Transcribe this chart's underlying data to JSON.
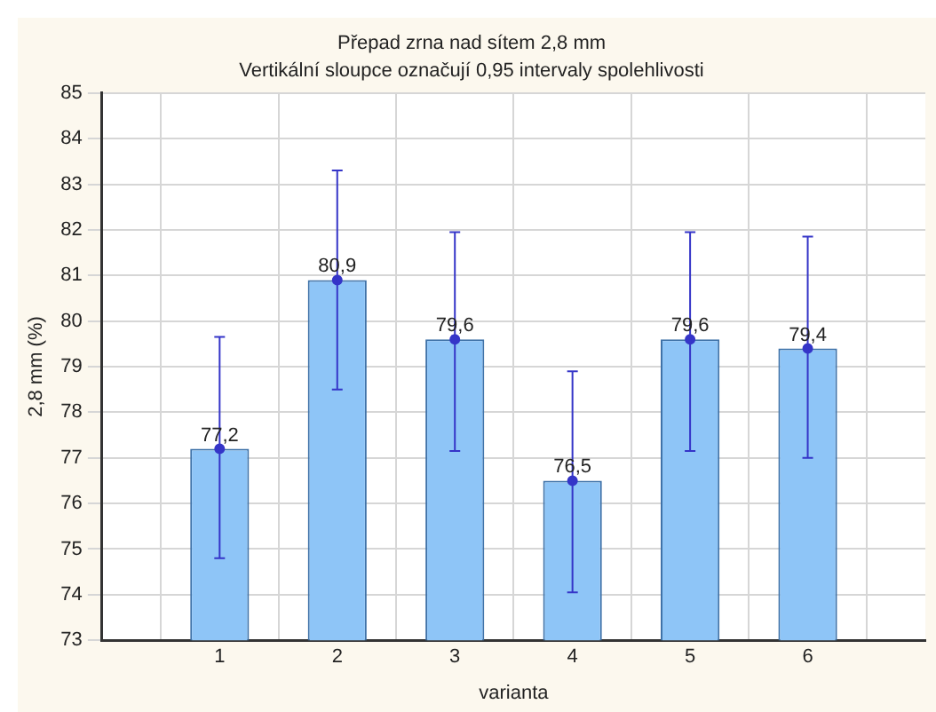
{
  "chart_data": {
    "type": "bar",
    "title": "Přepad zrna nad sítem 2,8 mm",
    "subtitle": "Vertikální sloupce označují 0,95 intervaly spolehlivosti",
    "xlabel": "varianta",
    "ylabel": "2,8 mm (%)",
    "categories": [
      "1",
      "2",
      "3",
      "4",
      "5",
      "6"
    ],
    "series": [
      {
        "color": "#8ec5f7",
        "values": [
          77.2,
          80.9,
          79.6,
          76.5,
          79.6,
          79.4
        ],
        "errors": [
          [
            74.8,
            79.65
          ],
          [
            78.5,
            83.3
          ],
          [
            77.15,
            81.95
          ],
          [
            74.05,
            78.9
          ],
          [
            77.15,
            81.95
          ],
          [
            77.0,
            81.85
          ]
        ],
        "value_labels": [
          "77,2",
          "80,9",
          "79,6",
          "76,5",
          "79,6",
          "79,4"
        ]
      },
      {
        "type": "scatter",
        "color": "#3535c8",
        "marker": "circle",
        "x": [
          "1",
          "2",
          "3",
          "4",
          "5",
          "6"
        ],
        "values": [
          77.2,
          80.9,
          79.6,
          76.5,
          79.6,
          79.4
        ]
      }
    ],
    "grid": true,
    "ylim": [
      73,
      85
    ],
    "yticks": [
      73,
      74,
      75,
      76,
      77,
      78,
      79,
      80,
      81,
      82,
      83,
      84,
      85
    ]
  }
}
